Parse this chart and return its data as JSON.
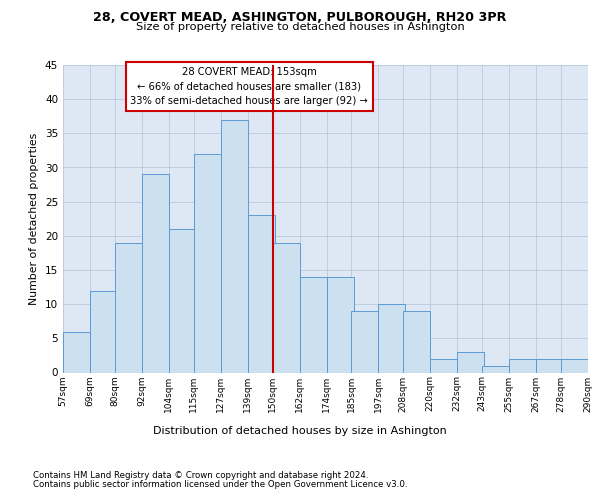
{
  "title1": "28, COVERT MEAD, ASHINGTON, PULBOROUGH, RH20 3PR",
  "title2": "Size of property relative to detached houses in Ashington",
  "xlabel": "Distribution of detached houses by size in Ashington",
  "ylabel": "Number of detached properties",
  "footnote1": "Contains HM Land Registry data © Crown copyright and database right 2024.",
  "footnote2": "Contains public sector information licensed under the Open Government Licence v3.0.",
  "annotation_line1": "28 COVERT MEAD: 153sqm",
  "annotation_line2": "← 66% of detached houses are smaller (183)",
  "annotation_line3": "33% of semi-detached houses are larger (92) →",
  "bar_left_edges": [
    57,
    69,
    80,
    92,
    104,
    115,
    127,
    139,
    150,
    162,
    174,
    185,
    197,
    208,
    220,
    232,
    243,
    255,
    267,
    278
  ],
  "bar_heights": [
    6,
    12,
    19,
    29,
    21,
    32,
    37,
    23,
    19,
    14,
    14,
    9,
    10,
    9,
    2,
    3,
    1,
    2,
    2,
    2
  ],
  "bin_width": 12,
  "tick_labels": [
    "57sqm",
    "69sqm",
    "80sqm",
    "92sqm",
    "104sqm",
    "115sqm",
    "127sqm",
    "139sqm",
    "150sqm",
    "162sqm",
    "174sqm",
    "185sqm",
    "197sqm",
    "208sqm",
    "220sqm",
    "232sqm",
    "243sqm",
    "255sqm",
    "267sqm",
    "278sqm",
    "290sqm"
  ],
  "bar_face_color": "#cce0f0",
  "bar_edge_color": "#5b9bd5",
  "vline_color": "#cc0000",
  "vline_x": 150,
  "annotation_box_edge_color": "#cc0000",
  "annotation_box_face_color": "#ffffff",
  "grid_color": "#b8c8dc",
  "bg_color": "#dde8f4",
  "ylim": [
    0,
    45
  ],
  "yticks": [
    0,
    5,
    10,
    15,
    20,
    25,
    30,
    35,
    40,
    45
  ]
}
